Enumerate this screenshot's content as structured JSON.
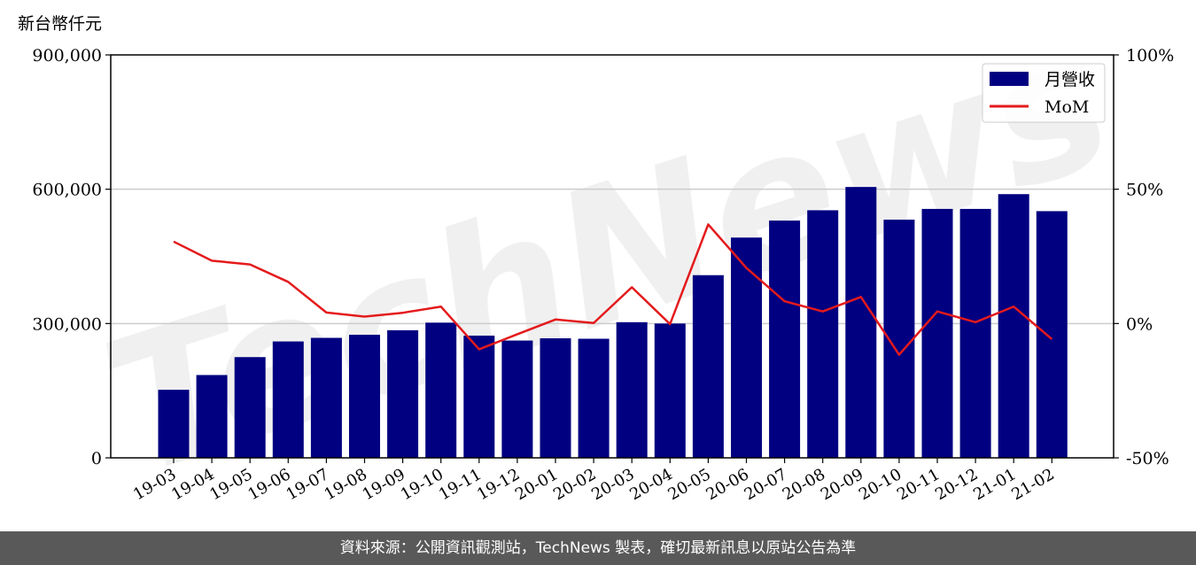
{
  "chart_data": {
    "type": "bar",
    "title": "",
    "ylabel_left": "新台幣仟元",
    "ylabel_right": "",
    "categories": [
      "19-03",
      "19-04",
      "19-05",
      "19-06",
      "19-07",
      "19-08",
      "19-09",
      "19-10",
      "19-11",
      "19-12",
      "20-01",
      "20-02",
      "20-03",
      "20-04",
      "20-05",
      "20-06",
      "20-07",
      "20-08",
      "20-09",
      "20-10",
      "20-11",
      "20-12",
      "21-01",
      "21-02"
    ],
    "series": [
      {
        "name": "月營收",
        "type": "bar",
        "axis": "left",
        "color": "#000080",
        "values": [
          152000,
          185000,
          225000,
          260000,
          268000,
          275000,
          285000,
          302000,
          273000,
          262000,
          267000,
          266000,
          303000,
          300000,
          408000,
          492000,
          530000,
          553000,
          605000,
          532000,
          556000,
          556000,
          589000,
          551000
        ]
      },
      {
        "name": "MoM",
        "type": "line",
        "axis": "right",
        "color": "#e41a1c",
        "values": [
          30.5,
          23.4,
          22.0,
          15.5,
          4.1,
          2.6,
          4.0,
          6.3,
          -9.6,
          -4.0,
          1.5,
          0.2,
          13.5,
          -0.2,
          36.9,
          20.7,
          8.3,
          4.5,
          9.9,
          -11.6,
          4.5,
          0.5,
          6.3,
          -5.8
        ]
      }
    ],
    "ylim_left": [
      0,
      900000
    ],
    "ylim_right": [
      -50,
      100
    ],
    "yticks_left": [
      "0",
      "300,000",
      "600,000",
      "900,000"
    ],
    "yticks_right": [
      "-50%",
      "0%",
      "50%",
      "100%"
    ],
    "grid": "horizontal",
    "legend_position": "top-right",
    "watermark": "TechNews"
  },
  "footer": {
    "text": "資料來源：公開資訊觀測站，TechNews 製表，確切最新訊息以原站公告為準"
  }
}
